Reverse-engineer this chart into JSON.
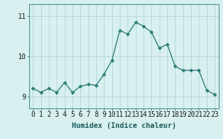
{
  "xlabel": "Humidex (Indice chaleur)",
  "ylabel": "",
  "x": [
    0,
    1,
    2,
    3,
    4,
    5,
    6,
    7,
    8,
    9,
    10,
    11,
    12,
    13,
    14,
    15,
    16,
    17,
    18,
    19,
    20,
    21,
    22,
    23
  ],
  "y": [
    9.2,
    9.1,
    9.2,
    9.1,
    9.35,
    9.1,
    9.25,
    9.3,
    9.28,
    9.55,
    9.9,
    10.65,
    10.55,
    10.85,
    10.75,
    10.6,
    10.2,
    10.3,
    9.75,
    9.65,
    9.65,
    9.65,
    9.15,
    9.05
  ],
  "line_color": "#2d7d78",
  "marker": "D",
  "marker_size": 2.5,
  "bg_color": "#d8f0f0",
  "grid_color": "#b8d8d8",
  "ylim": [
    8.7,
    11.3
  ],
  "yticks": [
    9,
    10,
    11
  ],
  "xticks": [
    0,
    1,
    2,
    3,
    4,
    5,
    6,
    7,
    8,
    9,
    10,
    11,
    12,
    13,
    14,
    15,
    16,
    17,
    18,
    19,
    20,
    21,
    22,
    23
  ],
  "xlabel_fontsize": 7.5,
  "tick_fontsize": 7,
  "line_width": 1.0,
  "spine_color": "#4a9090"
}
